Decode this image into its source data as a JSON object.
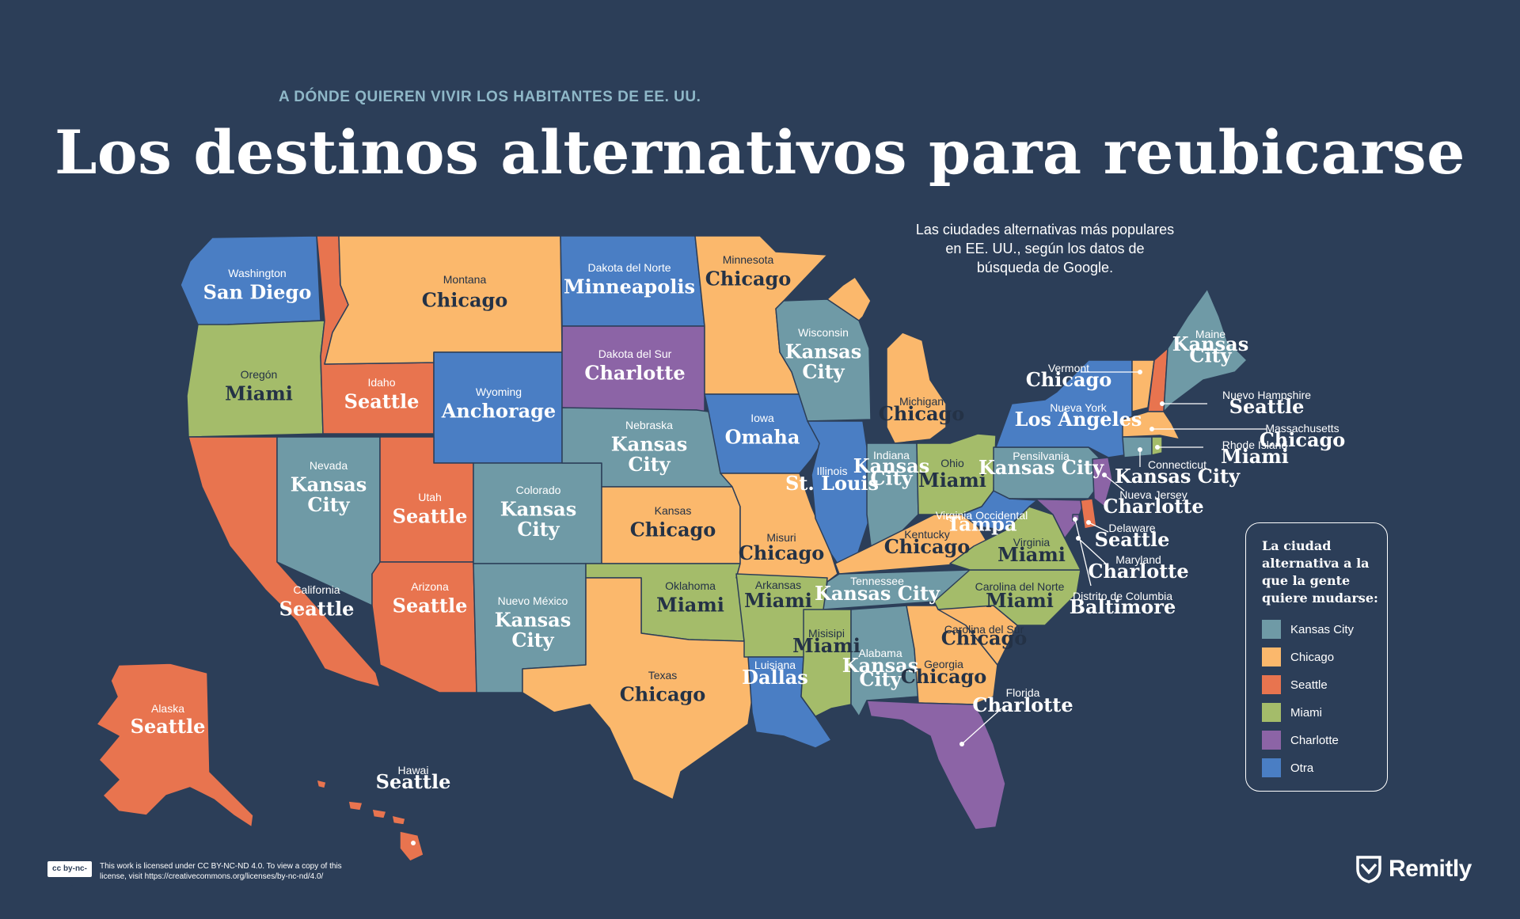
{
  "header": {
    "kicker": "A DÓNDE QUIEREN VIVIR LOS HABITANTES DE EE. UU.",
    "title": "Los destinos alternativos para reubicarse",
    "subtitle_lines": [
      "Las ciudades alternativas más populares",
      "en EE. UU., según los datos de",
      "búsqueda de Google."
    ]
  },
  "colors": {
    "kansas_city": "#6f9aa6",
    "chicago": "#fbb86c",
    "seattle": "#e8744f",
    "miami": "#a4bc6a",
    "charlotte": "#8c64a6",
    "otra": "#4a7ec4",
    "background": "#2c3e58"
  },
  "states": {
    "washington": {
      "name": "Washington",
      "city": "San Diego"
    },
    "oregon": {
      "name": "Oregón",
      "city": "Miami"
    },
    "california": {
      "name": "California",
      "city": "Seattle"
    },
    "nevada": {
      "name": "Nevada",
      "city": "Kansas City"
    },
    "idaho": {
      "name": "Idaho",
      "city": "Seattle"
    },
    "montana": {
      "name": "Montana",
      "city": "Chicago"
    },
    "wyoming": {
      "name": "Wyoming",
      "city": "Anchorage"
    },
    "utah": {
      "name": "Utah",
      "city": "Seattle"
    },
    "arizona": {
      "name": "Arizona",
      "city": "Seattle"
    },
    "colorado": {
      "name": "Colorado",
      "city": "Kansas City"
    },
    "new_mexico": {
      "name": "Nuevo México",
      "city": "Kansas City"
    },
    "north_dakota": {
      "name": "Dakota del Norte",
      "city": "Minneapolis"
    },
    "south_dakota": {
      "name": "Dakota del Sur",
      "city": "Charlotte"
    },
    "nebraska": {
      "name": "Nebraska",
      "city": "Kansas City"
    },
    "kansas": {
      "name": "Kansas",
      "city": "Chicago"
    },
    "oklahoma": {
      "name": "Oklahoma",
      "city": "Miami"
    },
    "texas": {
      "name": "Texas",
      "city": "Chicago"
    },
    "minnesota": {
      "name": "Minnesota",
      "city": "Chicago"
    },
    "iowa": {
      "name": "Iowa",
      "city": "Omaha"
    },
    "missouri": {
      "name": "Misuri",
      "city": "Chicago"
    },
    "arkansas": {
      "name": "Arkansas",
      "city": "Miami"
    },
    "louisiana": {
      "name": "Luisiana",
      "city": "Dallas"
    },
    "wisconsin": {
      "name": "Wisconsin",
      "city": "Kansas City"
    },
    "illinois": {
      "name": "Illinois",
      "city": "St. Louis"
    },
    "michigan": {
      "name": "Michigan",
      "city": "Chicago"
    },
    "indiana": {
      "name": "Indiana",
      "city": "Kansas City"
    },
    "ohio": {
      "name": "Ohio",
      "city": "Miami"
    },
    "kentucky": {
      "name": "Kentucky",
      "city": "Chicago"
    },
    "tennessee": {
      "name": "Tennessee",
      "city": "Kansas City"
    },
    "mississippi": {
      "name": "Misisipi",
      "city": "Miami"
    },
    "alabama": {
      "name": "Alabama",
      "city": "Kansas City"
    },
    "georgia": {
      "name": "Georgia",
      "city": "Chicago"
    },
    "florida": {
      "name": "Florida",
      "city": "Charlotte"
    },
    "south_carolina": {
      "name": "Carolina del Sur",
      "city": "Chicago"
    },
    "north_carolina": {
      "name": "Carolina del Norte",
      "city": "Miami"
    },
    "virginia": {
      "name": "Virginia",
      "city": "Miami"
    },
    "west_virginia": {
      "name": "Virginia Occidental",
      "city": "Tampa"
    },
    "pennsylvania": {
      "name": "Pensilvania",
      "city": "Kansas City"
    },
    "new_york": {
      "name": "Nueva York",
      "city": "Los Ángeles"
    },
    "vermont": {
      "name": "Vermont",
      "city": "Chicago"
    },
    "new_hampshire": {
      "name": "Nuevo Hampshire",
      "city": "Seattle"
    },
    "maine": {
      "name": "Maine",
      "city": "Kansas City"
    },
    "massachusetts": {
      "name": "Massachusetts",
      "city": "Chicago"
    },
    "rhode_island": {
      "name": "Rhode Island",
      "city": "Miami"
    },
    "connecticut": {
      "name": "Connecticut",
      "city": "Kansas City"
    },
    "new_jersey": {
      "name": "Nueva Jersey",
      "city": "Charlotte"
    },
    "delaware": {
      "name": "Delaware",
      "city": "Seattle"
    },
    "maryland": {
      "name": "Maryland",
      "city": "Charlotte"
    },
    "dc": {
      "name": "Distrito de Columbia",
      "city": "Baltimore"
    },
    "alaska": {
      "name": "Alaska",
      "city": "Seattle"
    },
    "hawaii": {
      "name": "Hawai",
      "city": "Seattle"
    }
  },
  "legend": {
    "title": "La ciudad alternativa a la que la gente quiere mudarse:",
    "items": [
      {
        "label": "Kansas City",
        "color": "#6f9aa6"
      },
      {
        "label": "Chicago",
        "color": "#fbb86c"
      },
      {
        "label": "Seattle",
        "color": "#e8744f"
      },
      {
        "label": "Miami",
        "color": "#a4bc6a"
      },
      {
        "label": "Charlotte",
        "color": "#8c64a6"
      },
      {
        "label": "Otra",
        "color": "#4a7ec4"
      }
    ]
  },
  "footer": {
    "license_badge": "cc by-nc-nd",
    "license_text": "This work is licensed under CC BY-NC-ND 4.0. To view a copy of this license, visit https://creativecommons.org/licenses/by-nc-nd/4.0/",
    "brand": "Remitly",
    "brand_icon": "remitly-shield-icon"
  }
}
